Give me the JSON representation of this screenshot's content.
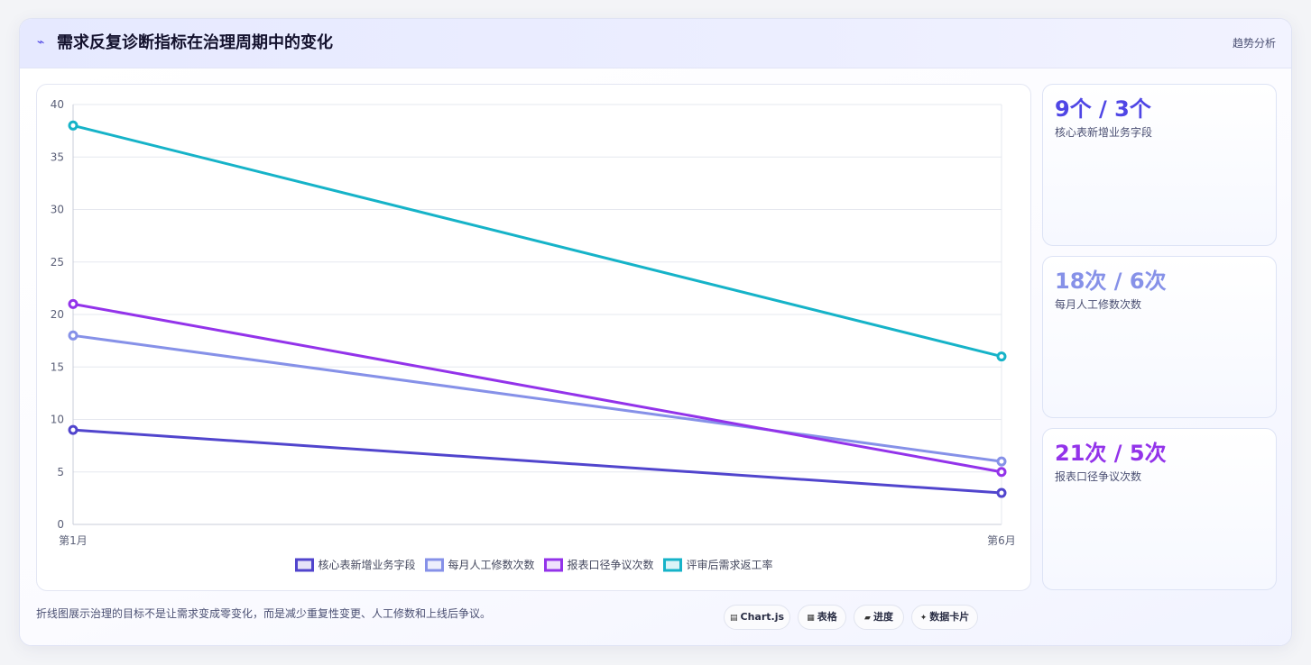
{
  "header": {
    "title": "需求反复诊断指标在治理周期中的变化",
    "icon": "trend-icon",
    "right_label": "趋势分析"
  },
  "chart_data": {
    "type": "line",
    "x": [
      "第1月",
      "第6月"
    ],
    "ylim": [
      0,
      40
    ],
    "yticks": [
      0,
      5,
      10,
      15,
      20,
      25,
      30,
      35,
      40
    ],
    "grid": true,
    "legend_position": "bottom",
    "series": [
      {
        "name": "核心表新增业务字段",
        "values": [
          9,
          3
        ],
        "color": "#5145cd"
      },
      {
        "name": "每月人工修数次数",
        "values": [
          18,
          6
        ],
        "color": "#8691e8"
      },
      {
        "name": "报表口径争议次数",
        "values": [
          21,
          5
        ],
        "color": "#9333ea"
      },
      {
        "name": "评审后需求返工率",
        "values": [
          38,
          16
        ],
        "color": "#16b3c8"
      }
    ]
  },
  "stats": [
    {
      "value": "9个 / 3个",
      "label": "核心表新增业务字段",
      "color": "#4f46e5"
    },
    {
      "value": "18次 / 6次",
      "label": "每月人工修数次数",
      "color": "#8691e8"
    },
    {
      "value": "21次 / 5次",
      "label": "报表口径争议次数",
      "color": "#9333ea"
    }
  ],
  "footer": {
    "note": "折线图展示治理的目标不是让需求变成零变化，而是减少重复性变更、人工修数和上线后争议。",
    "pills": [
      {
        "label": "Chart.js",
        "icon": "chart-icon"
      },
      {
        "label": "表格",
        "icon": "table-icon"
      },
      {
        "label": "进度",
        "icon": "progress-icon"
      },
      {
        "label": "数据卡片",
        "icon": "sparkle-icon"
      }
    ]
  }
}
